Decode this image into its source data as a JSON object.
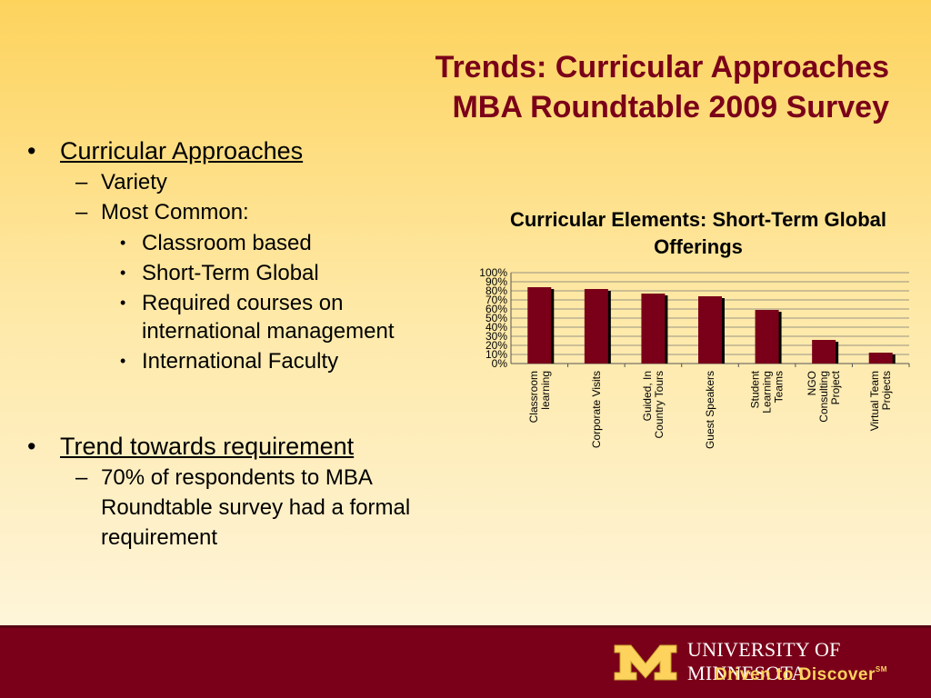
{
  "slide": {
    "title_line1": "Trends: Curricular Approaches",
    "title_line2": "MBA Roundtable 2009 Survey"
  },
  "bullets": {
    "b1": "Curricular Approaches",
    "b1_sub1": "Variety",
    "b1_sub2": "Most Common:",
    "b1_sub2_items": [
      "Classroom based",
      "Short-Term Global",
      "Required courses on international management",
      "International Faculty"
    ],
    "b2": "Trend towards requirement",
    "b2_sub1": "70% of respondents to MBA Roundtable survey had a formal requirement"
  },
  "chart_data": {
    "type": "bar",
    "title": "Curricular Elements: Short-Term Global Offerings",
    "categories": [
      [
        "Classroom",
        "learning"
      ],
      [
        "Corporate Visits"
      ],
      [
        "Guided, In",
        "Country Tours"
      ],
      [
        "Guest Speakers"
      ],
      [
        "Student",
        "Learning",
        "Teams"
      ],
      [
        "NGO",
        "Consulting",
        "Project"
      ],
      [
        "Virtual Team",
        "Projects"
      ]
    ],
    "values": [
      84,
      82,
      77,
      74,
      59,
      26,
      12
    ],
    "ylim": [
      0,
      100
    ],
    "yticks": [
      "0%",
      "10%",
      "20%",
      "30%",
      "40%",
      "50%",
      "60%",
      "70%",
      "80%",
      "90%",
      "100%"
    ],
    "bar_color": "#7a0019",
    "grid": true,
    "legend": "none"
  },
  "footer": {
    "university": "UNIVERSITY OF MINNESOTA",
    "tagline": "Driven to Discover",
    "tagline_mark": "SM",
    "colors": {
      "maroon": "#7a0019",
      "gold": "#fdd35d"
    }
  }
}
